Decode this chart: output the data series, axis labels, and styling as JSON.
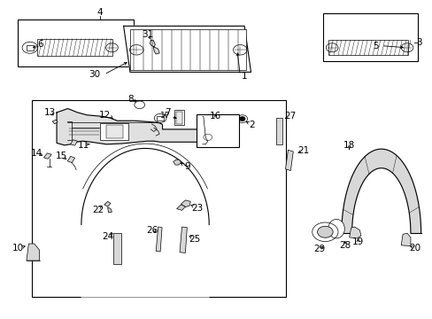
{
  "bg_color": "#ffffff",
  "fig_width": 4.89,
  "fig_height": 3.6,
  "dpi": 100,
  "lw": 0.8,
  "fs": 7.5,
  "label_positions": {
    "1": [
      0.565,
      0.765,
      0.52,
      0.77
    ],
    "2": [
      0.582,
      0.61,
      0.568,
      0.618
    ],
    "3": [
      0.945,
      0.87,
      0.932,
      0.87
    ],
    "4": [
      0.23,
      0.96,
      0.23,
      0.948
    ],
    "5": [
      0.87,
      0.855,
      0.87,
      0.843
    ],
    "6": [
      0.093,
      0.855,
      0.107,
      0.843
    ],
    "7": [
      0.388,
      0.648,
      0.38,
      0.64
    ],
    "8": [
      0.302,
      0.69,
      0.308,
      0.68
    ],
    "9": [
      0.432,
      0.478,
      0.418,
      0.487
    ],
    "10": [
      0.04,
      0.218,
      0.058,
      0.225
    ],
    "11": [
      0.193,
      0.548,
      0.205,
      0.548
    ],
    "12": [
      0.242,
      0.64,
      0.258,
      0.628
    ],
    "13": [
      0.115,
      0.648,
      0.123,
      0.638
    ],
    "14": [
      0.083,
      0.52,
      0.096,
      0.514
    ],
    "15": [
      0.14,
      0.51,
      0.152,
      0.5
    ],
    "16": [
      0.498,
      0.635,
      0.498,
      0.622
    ],
    "17": [
      0.38,
      0.635,
      0.388,
      0.622
    ],
    "18": [
      0.808,
      0.545,
      0.808,
      0.534
    ],
    "19": [
      0.828,
      0.238,
      0.828,
      0.25
    ],
    "20": [
      0.96,
      0.218,
      0.95,
      0.228
    ],
    "21": [
      0.702,
      0.53,
      0.692,
      0.52
    ],
    "22": [
      0.225,
      0.345,
      0.232,
      0.355
    ],
    "23": [
      0.455,
      0.35,
      0.442,
      0.355
    ],
    "24": [
      0.248,
      0.26,
      0.258,
      0.268
    ],
    "25": [
      0.45,
      0.248,
      0.437,
      0.258
    ],
    "26": [
      0.352,
      0.278,
      0.358,
      0.268
    ],
    "27": [
      0.672,
      0.638,
      0.66,
      0.628
    ],
    "28": [
      0.798,
      0.232,
      0.798,
      0.242
    ],
    "29": [
      0.738,
      0.22,
      0.748,
      0.228
    ],
    "30": [
      0.218,
      0.768,
      0.23,
      0.775
    ],
    "31": [
      0.34,
      0.888,
      0.348,
      0.878
    ]
  }
}
